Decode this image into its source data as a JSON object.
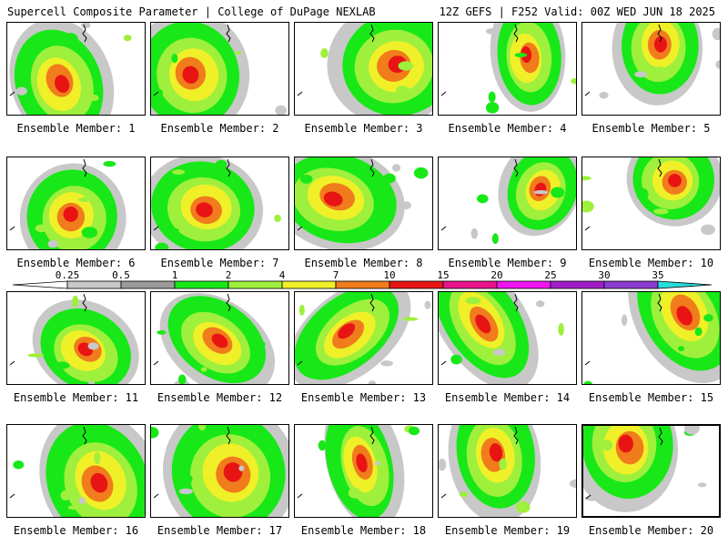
{
  "header": {
    "left": "Supercell Composite Parameter | College of DuPage NEXLAB",
    "right": "12Z GEFS | F252 Valid: 00Z WED JUN 18 2025"
  },
  "colorbar": {
    "ticks": [
      "0.25",
      "0.5",
      "1",
      "2",
      "4",
      "7",
      "10",
      "15",
      "20",
      "25",
      "30",
      "35"
    ],
    "colors": [
      "#c8c8c8",
      "#9a9a9a",
      "#18e818",
      "#9ef03c",
      "#f0f028",
      "#f07c1c",
      "#e81414",
      "#e8148c",
      "#f014f0",
      "#a01ec8",
      "#8c3cd2",
      "#28dcdc"
    ]
  },
  "panels": [
    {
      "label": "Ensemble Member: 1"
    },
    {
      "label": "Ensemble Member: 2"
    },
    {
      "label": "Ensemble Member: 3"
    },
    {
      "label": "Ensemble Member: 4"
    },
    {
      "label": "Ensemble Member: 5"
    },
    {
      "label": "Ensemble Member: 6"
    },
    {
      "label": "Ensemble Member: 7"
    },
    {
      "label": "Ensemble Member: 8"
    },
    {
      "label": "Ensemble Member: 9"
    },
    {
      "label": "Ensemble Member: 10"
    },
    {
      "label": "Ensemble Member: 11"
    },
    {
      "label": "Ensemble Member: 12"
    },
    {
      "label": "Ensemble Member: 13"
    },
    {
      "label": "Ensemble Member: 14"
    },
    {
      "label": "Ensemble Member: 15"
    },
    {
      "label": "Ensemble Member: 16"
    },
    {
      "label": "Ensemble Member: 17"
    },
    {
      "label": "Ensemble Member: 18"
    },
    {
      "label": "Ensemble Member: 19"
    },
    {
      "label": "Ensemble Member: 20"
    }
  ]
}
